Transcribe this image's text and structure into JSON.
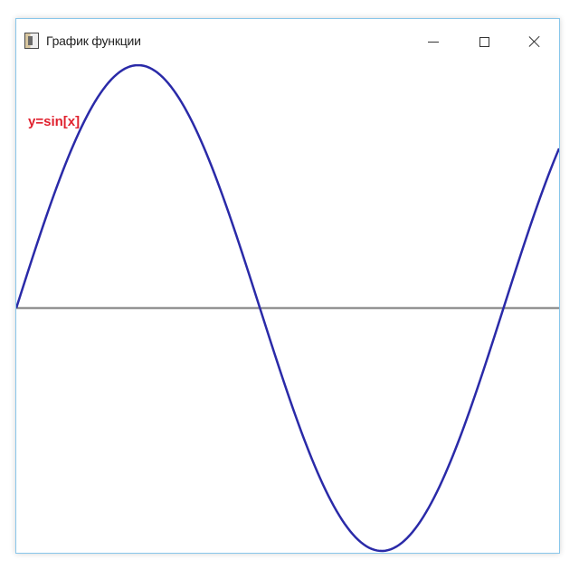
{
  "window": {
    "title": "График функции",
    "controls": {
      "minimize": "minimize-icon",
      "maximize": "maximize-icon",
      "close": "close-icon"
    }
  },
  "plot": {
    "label": "y=sin[x]",
    "label_color": "#e0212e",
    "curve_color": "#2a2aa8",
    "axis_color": "#7a7a7a"
  },
  "chart_data": {
    "type": "line",
    "function": "sin",
    "x_range": [
      0,
      7.0
    ],
    "y_range": [
      -1,
      1
    ],
    "series": [
      {
        "name": "y=sin[x]",
        "samples": 200
      }
    ]
  }
}
